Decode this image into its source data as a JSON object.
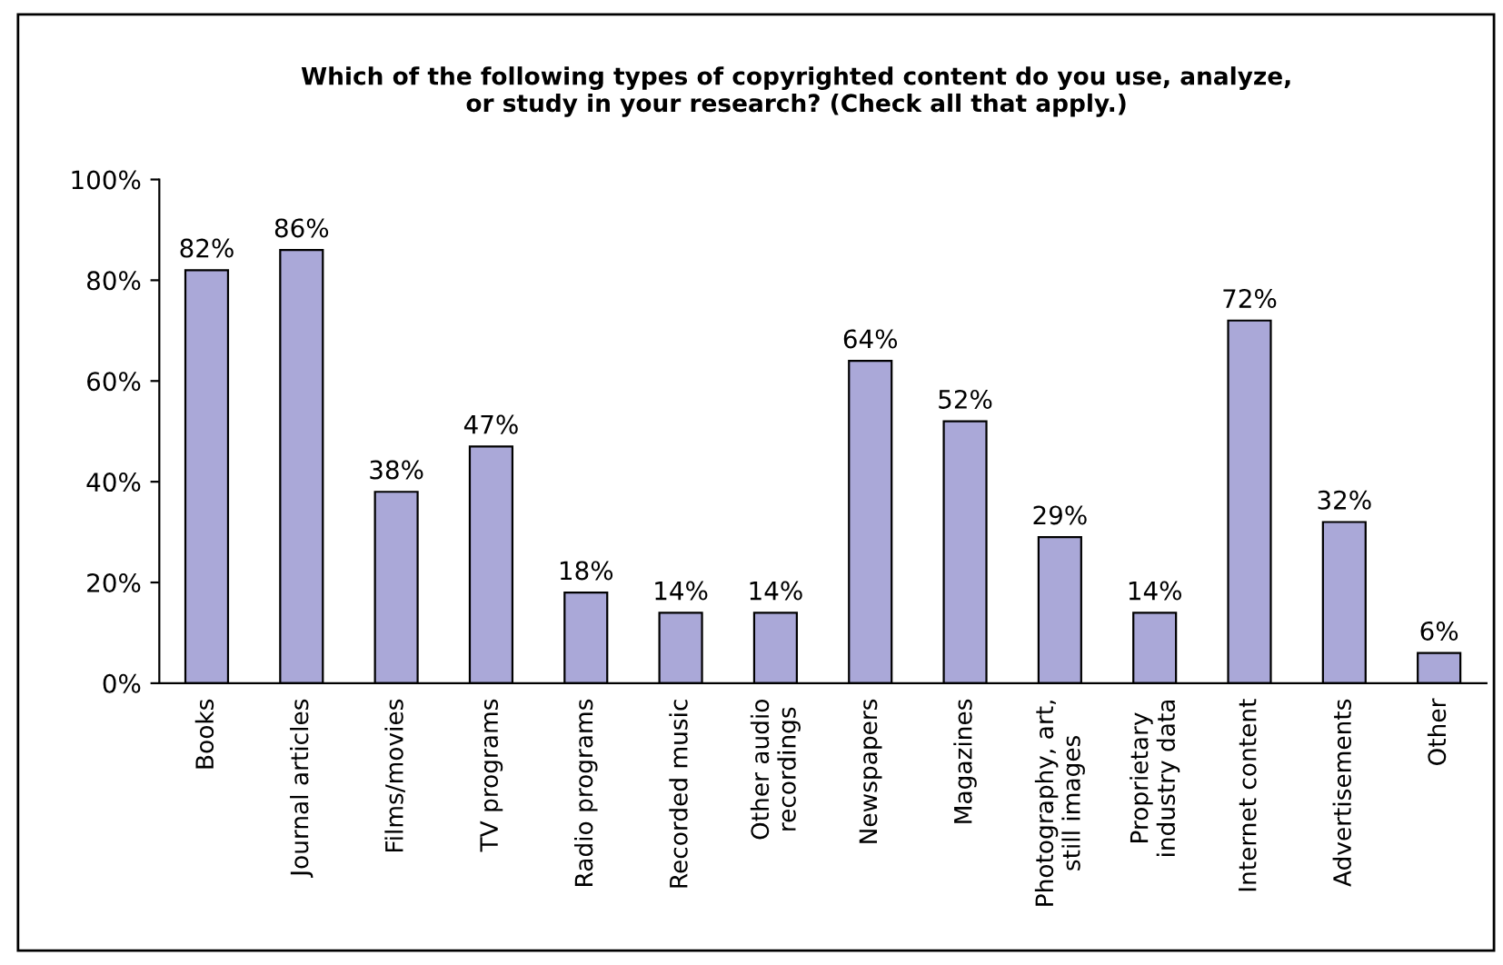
{
  "chart_data": {
    "type": "bar",
    "title": "Which of the following types of copyrighted content do you use, analyze,\nor study in your research? (Check all that apply.)",
    "categories": [
      "Books",
      "Journal articles",
      "Films/movies",
      "TV programs",
      "Radio programs",
      "Recorded music",
      "Other audio\nrecordings",
      "Newspapers",
      "Magazines",
      "Photography, art,\nstill images",
      "Proprietary\nindustry data",
      "Internet content",
      "Advertisements",
      "Other"
    ],
    "values": [
      82,
      86,
      38,
      47,
      18,
      14,
      14,
      64,
      52,
      29,
      14,
      72,
      32,
      6
    ],
    "value_labels": [
      "82%",
      "86%",
      "38%",
      "47%",
      "18%",
      "14%",
      "14%",
      "64%",
      "52%",
      "29%",
      "14%",
      "72%",
      "32%",
      "6%"
    ],
    "color": "#aaa8d8",
    "ylim": [
      0,
      100
    ],
    "yticks": [
      {
        "value": 0,
        "label": "0%"
      },
      {
        "value": 20,
        "label": "20%"
      },
      {
        "value": 40,
        "label": "40%"
      },
      {
        "value": 60,
        "label": "60%"
      },
      {
        "value": 80,
        "label": "80%"
      },
      {
        "value": 100,
        "label": "100%"
      }
    ],
    "grid": false,
    "legend": false
  }
}
